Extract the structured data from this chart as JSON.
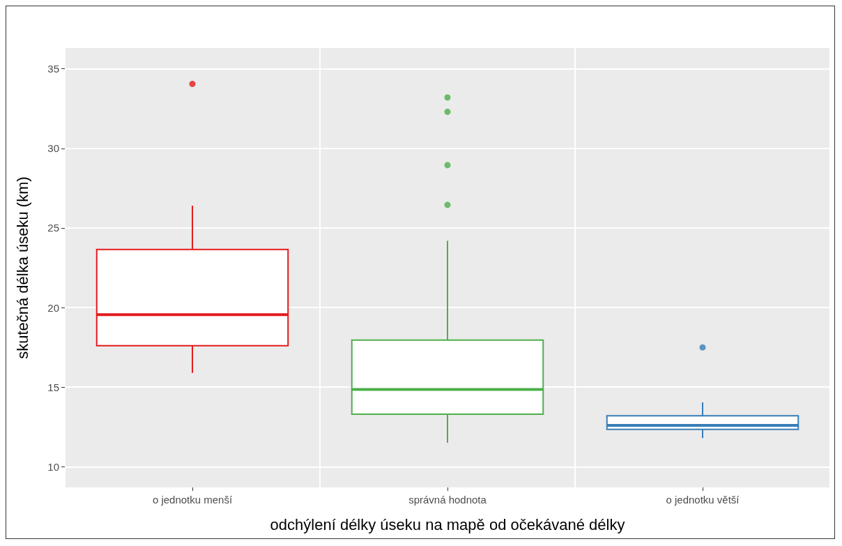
{
  "chart_data": {
    "type": "box",
    "xlabel": "odchýlení délky úseku na mapě od očekávané délky",
    "ylabel": "skutečná délka úseku (km)",
    "categories": [
      "o jednotku menší",
      "správná hodnota",
      "o jednotku větší"
    ],
    "colors": [
      "#e41a1c",
      "#4daf4a",
      "#377eb8"
    ],
    "boxes": [
      {
        "low": 15.9,
        "q1": 17.6,
        "median": 19.55,
        "q3": 23.65,
        "high": 26.4,
        "outliers": [
          34.05
        ]
      },
      {
        "low": 11.5,
        "q1": 13.3,
        "median": 14.85,
        "q3": 17.95,
        "high": 24.2,
        "outliers": [
          33.2,
          32.3,
          28.95,
          26.45
        ]
      },
      {
        "low": 11.8,
        "q1": 12.35,
        "median": 12.6,
        "q3": 13.2,
        "high": 14.05,
        "outliers": [
          17.5
        ]
      }
    ],
    "ylim": [
      8.7,
      36.3
    ],
    "yticks": [
      10,
      15,
      20,
      25,
      30,
      35
    ],
    "grid": true
  }
}
